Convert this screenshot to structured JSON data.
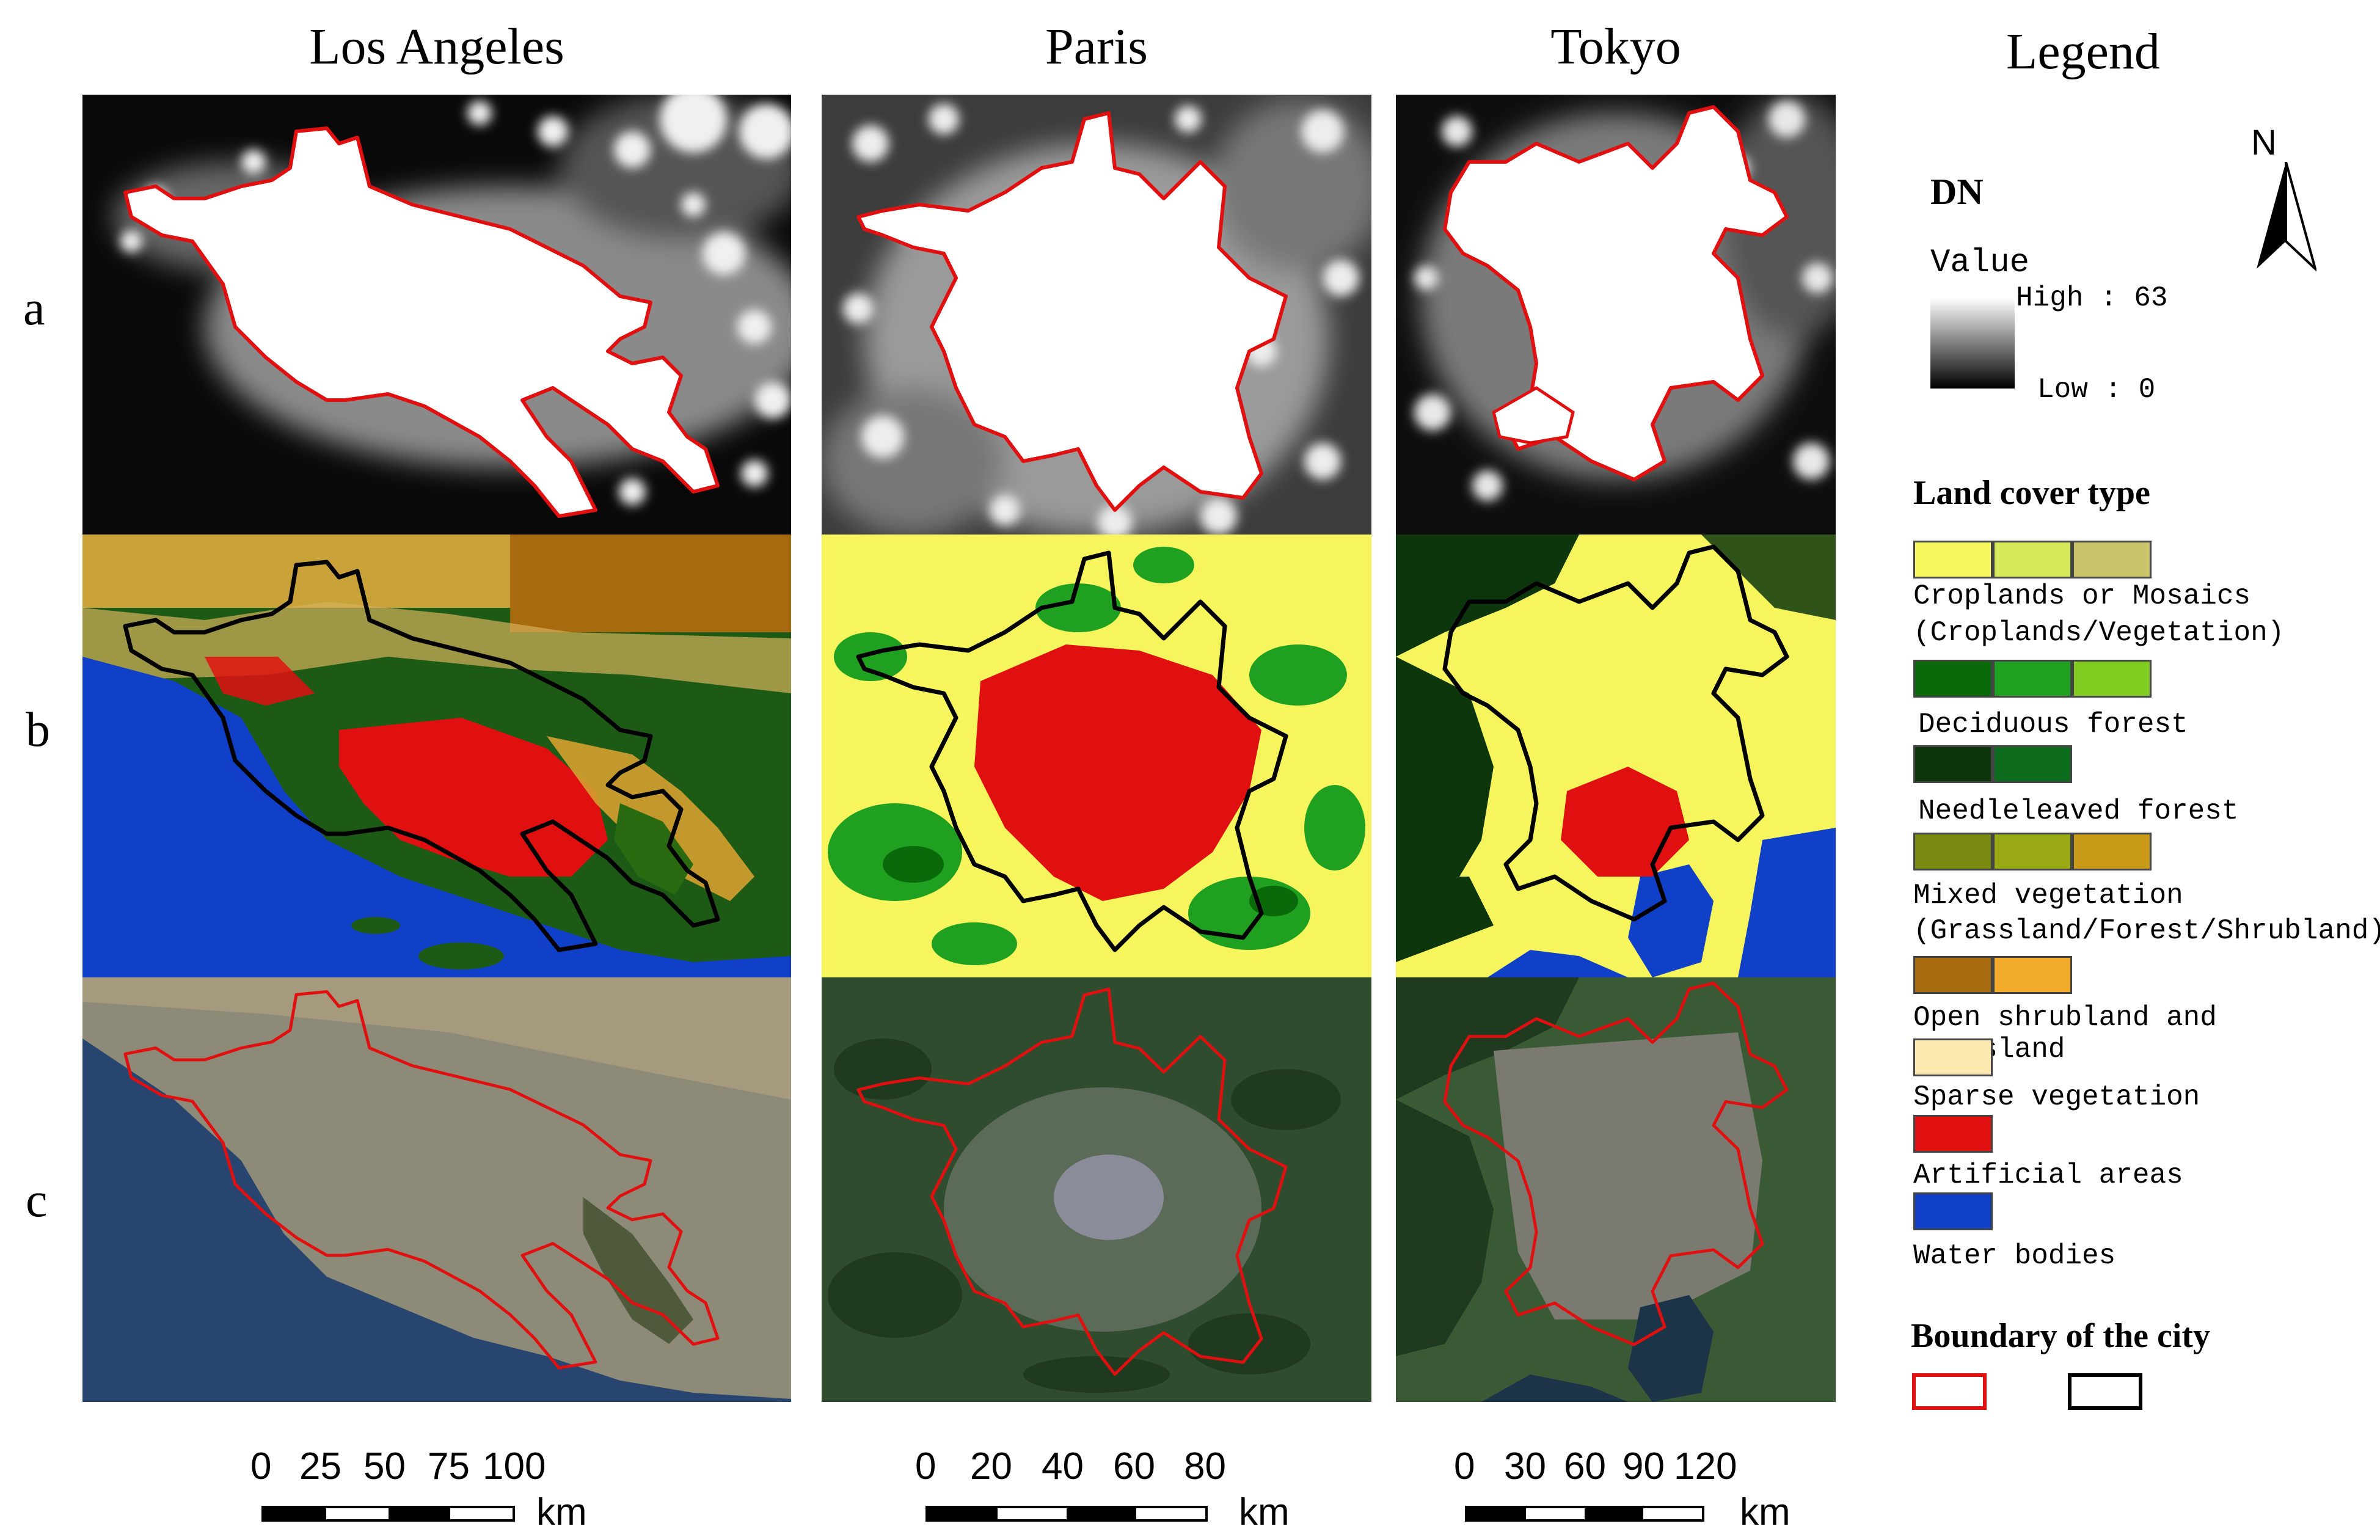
{
  "cities": [
    {
      "name": "Los Angeles",
      "scale": {
        "ticks": [
          "0",
          "25",
          "50",
          "75",
          "100"
        ],
        "unit": "km"
      }
    },
    {
      "name": "Paris",
      "scale": {
        "ticks": [
          "0",
          "20",
          "40",
          "60",
          "80"
        ],
        "unit": "km"
      }
    },
    {
      "name": "Tokyo",
      "scale": {
        "ticks": [
          "0",
          "30",
          "60",
          "90",
          "120"
        ],
        "unit": "km"
      }
    }
  ],
  "rows": [
    "a",
    "b",
    "c"
  ],
  "legend": {
    "title": "Legend",
    "north": "N",
    "dn": {
      "title": "DN",
      "value_label": "Value",
      "high_label": "High : 63",
      "low_label": "Low : 0"
    },
    "landcover_title": "Land cover type",
    "classes": [
      {
        "label": "Croplands or Mosaics",
        "label2": "(Croplands/Vegetation)",
        "colors": [
          "#f7f55e",
          "#d6ea5c",
          "#c9c36a"
        ]
      },
      {
        "label": "Deciduous forest",
        "colors": [
          "#0a6a0a",
          "#20a020",
          "#80cc20"
        ]
      },
      {
        "label": "Needleleaved forest",
        "colors": [
          "#0d360d",
          "#0c6b1c"
        ]
      },
      {
        "label": "Mixed vegetation",
        "label2": "(Grassland/Forest/Shrubland)",
        "colors": [
          "#7a8a10",
          "#9aaa14",
          "#c89a18"
        ]
      },
      {
        "label": "Open shrubland and grassland",
        "colors": [
          "#a86a0e",
          "#f2aa2a"
        ]
      },
      {
        "label": "Sparse vegetation",
        "colors": [
          "#fde8b0"
        ]
      },
      {
        "label": "Artificial areas",
        "colors": [
          "#e01010"
        ]
      },
      {
        "label": "Water bodies",
        "colors": [
          "#1040c8"
        ]
      }
    ],
    "boundary_title": "Boundary of the city",
    "boundary_colors": [
      "#e01010",
      "#000000"
    ]
  }
}
